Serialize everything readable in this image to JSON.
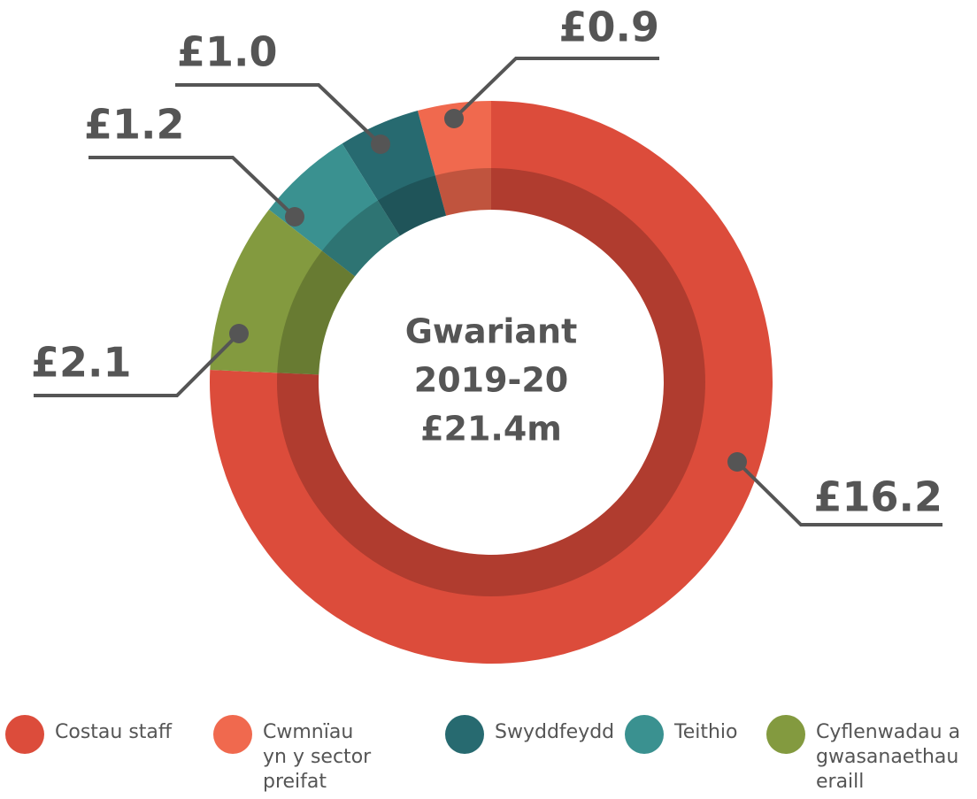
{
  "chart_data": {
    "type": "donut",
    "title": [
      "Gwariant",
      "2019-20",
      "£21.4m"
    ],
    "categories": [
      "Costau staff",
      "Cwmnïau yn y sector preifat",
      "Swyddfeydd",
      "Teithio",
      "Cyflenwadau a gwasanaethau eraill"
    ],
    "values": [
      16.2,
      0.9,
      1.0,
      1.2,
      2.1
    ],
    "value_labels": [
      "£16.2",
      "£0.9",
      "£1.0",
      "£1.2",
      "£2.1"
    ],
    "colors": [
      "#dc4c3b",
      "#f0694e",
      "#276a70",
      "#3a9190",
      "#839a3f"
    ]
  }
}
